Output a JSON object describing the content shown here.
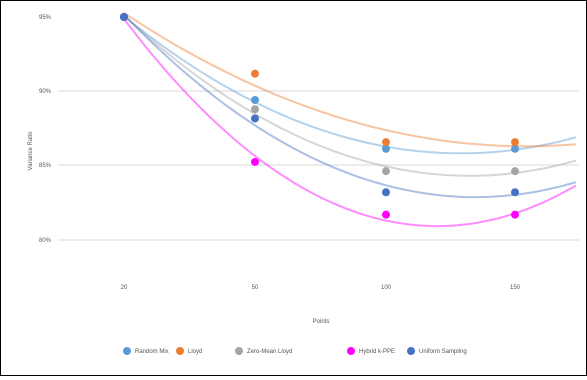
{
  "chart_data": {
    "type": "scatter",
    "title": "",
    "xlabel": "Points",
    "ylabel": "Variance Ratio",
    "x_ticks": [
      "20",
      "50",
      "100",
      "150"
    ],
    "y_ticks": [
      "95%",
      "90%",
      "85%",
      "80%"
    ],
    "ylim": [
      78,
      95
    ],
    "grid": true,
    "legend_position": "bottom",
    "trendline": "polynomial",
    "series": [
      {
        "name": "Random Mix",
        "color": "#5b9bd5",
        "values": [
          95,
          88.7,
          85,
          85
        ]
      },
      {
        "name": "Lloyd",
        "color": "#ed7d31",
        "values": [
          95,
          90.7,
          85.5,
          85.5
        ]
      },
      {
        "name": "Zero-Mean Lloyd",
        "color": "#a5a5a5",
        "values": [
          95,
          88,
          83.3,
          83.3
        ]
      },
      {
        "name": "Hybrid k-PPE",
        "color": "#ff00ff",
        "values": [
          95,
          84,
          80,
          80
        ]
      },
      {
        "name": "Uniform Sampling",
        "color": "#4472c4",
        "values": [
          95,
          87.3,
          81.7,
          81.7
        ]
      }
    ]
  }
}
